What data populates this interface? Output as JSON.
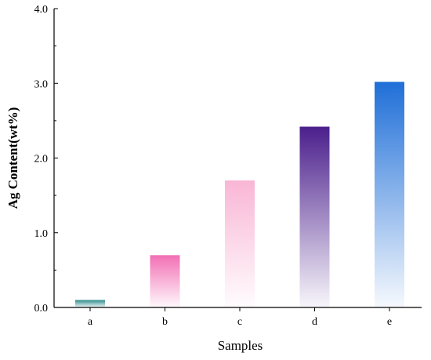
{
  "chart_data": {
    "type": "bar",
    "categories": [
      "a",
      "b",
      "c",
      "d",
      "e"
    ],
    "values": [
      0.1,
      0.7,
      1.7,
      2.42,
      3.02
    ],
    "colors": [
      "#2e8b8b",
      "#f26fb4",
      "#f9b6d6",
      "#4b1f8c",
      "#1f6fd8"
    ],
    "xlabel": "Samples",
    "ylabel": "Ag Content(wt%)",
    "ylim": [
      0,
      4
    ],
    "yticks": [
      "0.0",
      "1.0",
      "2.0",
      "3.0",
      "4.0"
    ],
    "grid": false
  }
}
